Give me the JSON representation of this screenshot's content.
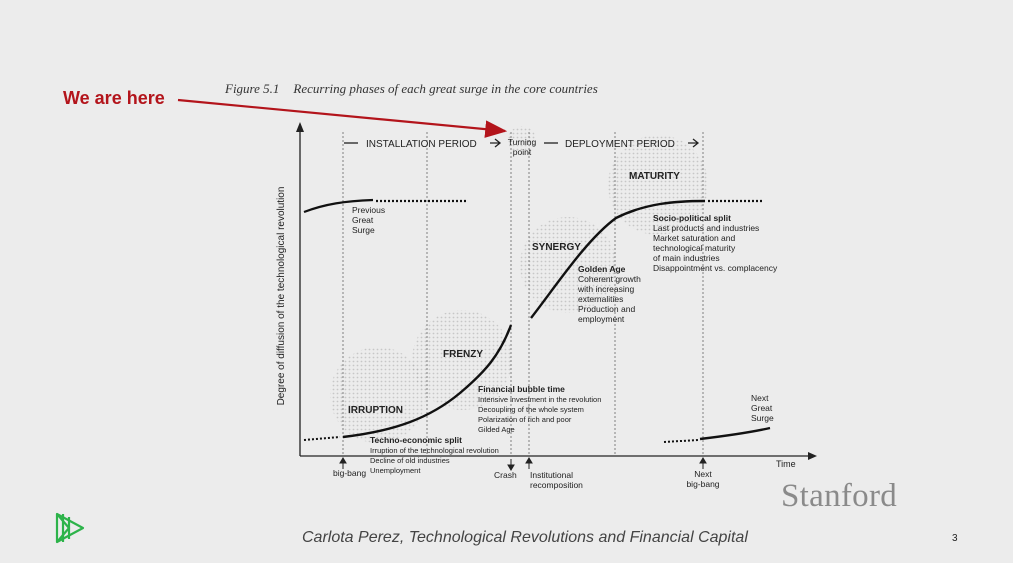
{
  "annotation": {
    "label": "We are here",
    "color": "#b3141b"
  },
  "figure": {
    "number": "Figure 5.1",
    "title": "Recurring phases of each great surge in the core countries",
    "y_axis_label": "Degree of diffusion of the technological revolution",
    "x_axis_label": "Time",
    "periods": {
      "installation": "INSTALLATION PERIOD",
      "deployment": "DEPLOYMENT PERIOD"
    },
    "turning_point": [
      "Turning",
      "point"
    ],
    "phases": {
      "irruption": "IRRUPTION",
      "frenzy": "FRENZY",
      "synergy": "SYNERGY",
      "maturity": "MATURITY"
    },
    "previous_surge": [
      "Previous",
      "Great",
      "Surge"
    ],
    "next_surge": [
      "Next",
      "Great",
      "Surge"
    ],
    "techno_economic_split": {
      "heading": "Techno-economic split",
      "lines": [
        "Irruption of the technological revolution",
        "Decline of old industries",
        "Unemployment"
      ]
    },
    "financial_bubble": {
      "heading": "Financial bubble time",
      "lines": [
        "Intensive investment in the revolution",
        "Decoupling of the whole system",
        "Polarization of rich and poor",
        "Gilded Age"
      ]
    },
    "golden_age": {
      "heading": "Golden Age",
      "lines": [
        "Coherent growth",
        "with increasing",
        "externalities",
        "Production and",
        "employment"
      ]
    },
    "socio_political_split": {
      "heading": "Socio-political split",
      "lines": [
        "Last products and industries",
        "Market saturation and",
        "technological maturity",
        "of main industries",
        "Disappointment vs. complacency"
      ]
    },
    "events": {
      "big_bang": "big-bang",
      "crash": "Crash",
      "institutional": [
        "Institutional",
        "recomposition"
      ],
      "next_big_bang": [
        "Next",
        "big-bang"
      ]
    }
  },
  "caption": "Carlota Perez, Technological Revolutions and Financial Capital",
  "slide_number": "3",
  "institution": "Stanford",
  "logo_icon": "play-triangles-icon",
  "logo_color": "#2db34a"
}
